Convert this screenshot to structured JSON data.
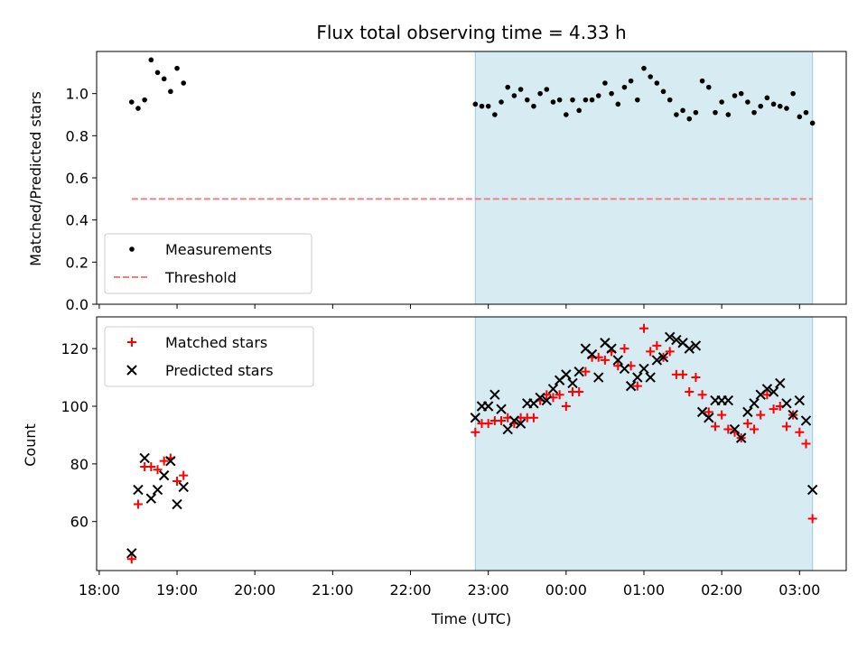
{
  "chart_data": [
    {
      "type": "scatter",
      "title": "Flux total observing time = 4.33 h",
      "ylabel": "Matched/Predicted stars",
      "ylim": [
        0,
        1.2
      ],
      "yticks": [
        "0.0",
        "0.2",
        "0.4",
        "0.6",
        "0.8",
        "1.0"
      ],
      "highlight_span": [
        "22:50",
        "03:10"
      ],
      "legend": {
        "placement": "lower-left",
        "entries": [
          "Measurements",
          "Threshold"
        ]
      },
      "series": [
        {
          "name": "Measurements",
          "marker": "dot",
          "color": "#000000",
          "points": [
            [
              "18:25",
              0.96
            ],
            [
              "18:30",
              0.93
            ],
            [
              "18:35",
              0.97
            ],
            [
              "18:40",
              1.16
            ],
            [
              "18:45",
              1.1
            ],
            [
              "18:50",
              1.07
            ],
            [
              "18:55",
              1.01
            ],
            [
              "19:00",
              1.12
            ],
            [
              "19:05",
              1.05
            ],
            [
              "22:50",
              0.95
            ],
            [
              "22:55",
              0.94
            ],
            [
              "23:00",
              0.94
            ],
            [
              "23:05",
              0.9
            ],
            [
              "23:10",
              0.96
            ],
            [
              "23:15",
              1.03
            ],
            [
              "23:20",
              0.99
            ],
            [
              "23:25",
              1.02
            ],
            [
              "23:30",
              0.97
            ],
            [
              "23:35",
              0.94
            ],
            [
              "23:40",
              1.0
            ],
            [
              "23:45",
              1.02
            ],
            [
              "23:50",
              0.96
            ],
            [
              "23:55",
              0.97
            ],
            [
              "00:00",
              0.9
            ],
            [
              "00:05",
              0.97
            ],
            [
              "00:10",
              0.92
            ],
            [
              "00:15",
              0.97
            ],
            [
              "00:20",
              0.97
            ],
            [
              "00:25",
              0.99
            ],
            [
              "00:30",
              1.05
            ],
            [
              "00:35",
              1.0
            ],
            [
              "00:40",
              0.95
            ],
            [
              "00:45",
              1.03
            ],
            [
              "00:50",
              1.06
            ],
            [
              "00:55",
              0.97
            ],
            [
              "01:00",
              1.12
            ],
            [
              "01:05",
              1.08
            ],
            [
              "01:10",
              1.05
            ],
            [
              "01:15",
              1.01
            ],
            [
              "01:20",
              0.97
            ],
            [
              "01:25",
              0.9
            ],
            [
              "01:30",
              0.92
            ],
            [
              "01:35",
              0.88
            ],
            [
              "01:40",
              0.91
            ],
            [
              "01:45",
              1.06
            ],
            [
              "01:50",
              1.03
            ],
            [
              "01:55",
              0.91
            ],
            [
              "02:00",
              0.96
            ],
            [
              "02:05",
              0.9
            ],
            [
              "02:10",
              0.99
            ],
            [
              "02:15",
              1.0
            ],
            [
              "02:20",
              0.96
            ],
            [
              "02:25",
              0.91
            ],
            [
              "02:30",
              0.94
            ],
            [
              "02:35",
              0.98
            ],
            [
              "02:40",
              0.95
            ],
            [
              "02:45",
              0.94
            ],
            [
              "02:50",
              0.93
            ],
            [
              "02:55",
              1.0
            ],
            [
              "03:00",
              0.89
            ],
            [
              "03:05",
              0.91
            ],
            [
              "03:10",
              0.86
            ]
          ]
        },
        {
          "name": "Threshold",
          "line": "dashed",
          "color": "#f08080",
          "points": [
            [
              "18:25",
              0.5
            ],
            [
              "03:10",
              0.5
            ]
          ]
        }
      ]
    },
    {
      "type": "scatter",
      "xlabel": "Time (UTC)",
      "ylabel": "Count",
      "ylim": [
        43,
        131
      ],
      "yticks": [
        "60",
        "80",
        "100",
        "120"
      ],
      "xticks": [
        "18:00",
        "19:00",
        "20:00",
        "21:00",
        "22:00",
        "23:00",
        "00:00",
        "01:00",
        "02:00",
        "03:00"
      ],
      "highlight_span": [
        "22:50",
        "03:10"
      ],
      "legend": {
        "placement": "upper-left",
        "entries": [
          "Matched stars",
          "Predicted stars"
        ]
      },
      "series": [
        {
          "name": "Matched stars",
          "marker": "plus",
          "color": "#ff0000",
          "points": [
            [
              "18:25",
              47
            ],
            [
              "18:30",
              66
            ],
            [
              "18:35",
              79
            ],
            [
              "18:40",
              79
            ],
            [
              "18:45",
              78
            ],
            [
              "18:50",
              81
            ],
            [
              "18:55",
              82
            ],
            [
              "19:00",
              74
            ],
            [
              "19:05",
              76
            ],
            [
              "22:50",
              91
            ],
            [
              "22:55",
              94
            ],
            [
              "23:00",
              94
            ],
            [
              "23:05",
              95
            ],
            [
              "23:10",
              95
            ],
            [
              "23:15",
              96
            ],
            [
              "23:20",
              94
            ],
            [
              "23:25",
              96
            ],
            [
              "23:30",
              96
            ],
            [
              "23:35",
              96
            ],
            [
              "23:40",
              102
            ],
            [
              "23:45",
              104
            ],
            [
              "23:50",
              103
            ],
            [
              "23:55",
              104
            ],
            [
              "00:00",
              100
            ],
            [
              "00:05",
              105
            ],
            [
              "00:10",
              105
            ],
            [
              "00:15",
              112
            ],
            [
              "00:20",
              117
            ],
            [
              "00:25",
              117
            ],
            [
              "00:30",
              116
            ],
            [
              "00:35",
              119
            ],
            [
              "00:40",
              114
            ],
            [
              "00:45",
              120
            ],
            [
              "00:50",
              114
            ],
            [
              "00:55",
              107
            ],
            [
              "01:00",
              127
            ],
            [
              "01:05",
              119
            ],
            [
              "01:10",
              121
            ],
            [
              "01:15",
              117
            ],
            [
              "01:20",
              119
            ],
            [
              "01:25",
              111
            ],
            [
              "01:30",
              111
            ],
            [
              "01:35",
              105
            ],
            [
              "01:40",
              110
            ],
            [
              "01:45",
              104
            ],
            [
              "01:50",
              98
            ],
            [
              "01:55",
              93
            ],
            [
              "02:00",
              97
            ],
            [
              "02:05",
              92
            ],
            [
              "02:10",
              91
            ],
            [
              "02:15",
              89
            ],
            [
              "02:20",
              94
            ],
            [
              "02:25",
              92
            ],
            [
              "02:30",
              97
            ],
            [
              "02:35",
              104
            ],
            [
              "02:40",
              99
            ],
            [
              "02:45",
              100
            ],
            [
              "02:50",
              93
            ],
            [
              "02:55",
              97
            ],
            [
              "03:00",
              91
            ],
            [
              "03:05",
              87
            ],
            [
              "03:10",
              61
            ]
          ]
        },
        {
          "name": "Predicted stars",
          "marker": "x",
          "color": "#000000",
          "points": [
            [
              "18:25",
              49
            ],
            [
              "18:30",
              71
            ],
            [
              "18:35",
              82
            ],
            [
              "18:40",
              68
            ],
            [
              "18:45",
              71
            ],
            [
              "18:50",
              76
            ],
            [
              "18:55",
              81
            ],
            [
              "19:00",
              66
            ],
            [
              "19:05",
              72
            ],
            [
              "22:50",
              96
            ],
            [
              "22:55",
              100
            ],
            [
              "23:00",
              100
            ],
            [
              "23:05",
              104
            ],
            [
              "23:10",
              99
            ],
            [
              "23:15",
              92
            ],
            [
              "23:20",
              95
            ],
            [
              "23:25",
              94
            ],
            [
              "23:30",
              101
            ],
            [
              "23:35",
              101
            ],
            [
              "23:40",
              103
            ],
            [
              "23:45",
              102
            ],
            [
              "23:50",
              106
            ],
            [
              "23:55",
              109
            ],
            [
              "00:00",
              111
            ],
            [
              "00:05",
              108
            ],
            [
              "00:10",
              112
            ],
            [
              "00:15",
              120
            ],
            [
              "00:20",
              118
            ],
            [
              "00:25",
              110
            ],
            [
              "00:30",
              122
            ],
            [
              "00:35",
              120
            ],
            [
              "00:40",
              116
            ],
            [
              "00:45",
              113
            ],
            [
              "00:50",
              107
            ],
            [
              "00:55",
              110
            ],
            [
              "01:00",
              113
            ],
            [
              "01:05",
              110
            ],
            [
              "01:10",
              116
            ],
            [
              "01:15",
              117
            ],
            [
              "01:20",
              124
            ],
            [
              "01:25",
              123
            ],
            [
              "01:30",
              122
            ],
            [
              "01:35",
              120
            ],
            [
              "01:40",
              121
            ],
            [
              "01:45",
              98
            ],
            [
              "01:50",
              96
            ],
            [
              "01:55",
              102
            ],
            [
              "02:00",
              102
            ],
            [
              "02:05",
              102
            ],
            [
              "02:10",
              92
            ],
            [
              "02:15",
              89
            ],
            [
              "02:20",
              98
            ],
            [
              "02:25",
              101
            ],
            [
              "02:30",
              104
            ],
            [
              "02:35",
              106
            ],
            [
              "02:40",
              105
            ],
            [
              "02:45",
              108
            ],
            [
              "02:50",
              101
            ],
            [
              "02:55",
              97
            ],
            [
              "03:00",
              102
            ],
            [
              "03:05",
              95
            ],
            [
              "03:10",
              71
            ]
          ]
        }
      ]
    }
  ]
}
